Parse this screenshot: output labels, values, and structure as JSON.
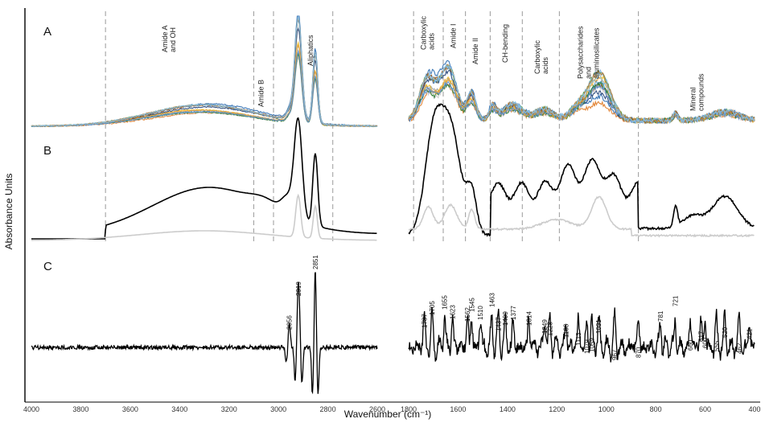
{
  "chart_data": {
    "type": "line",
    "ylabel": "Absorbance Units",
    "xlabel": "Wavenumber (cm⁻¹)",
    "xaxis_reversed": true,
    "x_ticks_left": [
      "4000",
      "3800",
      "3600",
      "3400",
      "3200",
      "3000",
      "2800",
      "2600"
    ],
    "x_ticks_right": [
      "1800",
      "1600",
      "1400",
      "1200",
      "1000",
      "800",
      "600",
      "400"
    ],
    "xlim_left": [
      4000,
      2600
    ],
    "xlim_right": [
      1800,
      400
    ],
    "panels": [
      "A",
      "B",
      "C"
    ],
    "band_boundaries": [
      3700,
      3100,
      3020,
      2780,
      1780,
      1660,
      1570,
      1470,
      1340,
      1190,
      870
    ],
    "region_labels": [
      {
        "text": "Amide A",
        "text2": "and OH"
      },
      {
        "text": "Amide B"
      },
      {
        "text": "Aliphatics"
      },
      {
        "text": "Carboxylic",
        "text2": "acids"
      },
      {
        "text": "Amide I"
      },
      {
        "text": "Amide II"
      },
      {
        "text": "CH-bending"
      },
      {
        "text": "Carboxylic",
        "text2": "acids"
      },
      {
        "text": "Polysaccharides",
        "text2": "and",
        "text3": "aluminosilicates"
      },
      {
        "text": "Mineral",
        "text2": "compounds"
      }
    ],
    "peaks_left": [
      {
        "x": 2956,
        "label": "2956"
      },
      {
        "x": 2919,
        "label": "2919"
      },
      {
        "x": 2851,
        "label": "2851"
      }
    ],
    "peaks_right": [
      {
        "x": 1737,
        "label": "1737"
      },
      {
        "x": 1705,
        "label": "1705"
      },
      {
        "x": 1655,
        "label": "1655"
      },
      {
        "x": 1623,
        "label": "1623"
      },
      {
        "x": 1562,
        "label": "1562"
      },
      {
        "x": 1545,
        "label": "1545"
      },
      {
        "x": 1510,
        "label": "1510"
      },
      {
        "x": 1463,
        "label": "1463"
      },
      {
        "x": 1437,
        "label": "1437"
      },
      {
        "x": 1409,
        "label": "1409"
      },
      {
        "x": 1377,
        "label": "1377"
      },
      {
        "x": 1314,
        "label": "1314"
      },
      {
        "x": 1249,
        "label": "1249"
      },
      {
        "x": 1228,
        "label": "1228"
      },
      {
        "x": 1163,
        "label": "1163"
      },
      {
        "x": 1113,
        "label": "1113"
      },
      {
        "x": 1079,
        "label": "1079"
      },
      {
        "x": 1059,
        "label": "1059"
      },
      {
        "x": 1031,
        "label": "1031"
      },
      {
        "x": 967,
        "label": "967"
      },
      {
        "x": 870,
        "label": "870"
      },
      {
        "x": 781,
        "label": "781"
      },
      {
        "x": 721,
        "label": "721"
      },
      {
        "x": 660,
        "label": "660"
      },
      {
        "x": 617,
        "label": "617"
      },
      {
        "x": 600,
        "label": "600"
      },
      {
        "x": 555,
        "label": "555"
      },
      {
        "x": 520,
        "label": "520"
      },
      {
        "x": 462,
        "label": "462"
      },
      {
        "x": 421,
        "label": "421"
      }
    ],
    "spectra_A_colors": [
      "#2b6cb0",
      "#e07b26",
      "#9aa0a6",
      "#f2c12e",
      "#3c8dbc",
      "#4a9a3a",
      "#1f3f75",
      "#a35a1f",
      "#7fb3e0",
      "#c8c8c8",
      "#2e7d32",
      "#e6a23c",
      "#5b8fd1",
      "#b07b3a",
      "#89c2e8"
    ],
    "series": [
      {
        "panel": "B",
        "color": "#000000"
      },
      {
        "panel": "B",
        "color": "#cccccc"
      },
      {
        "panel": "C",
        "color": "#000000"
      }
    ],
    "grid": false,
    "legend": "none"
  }
}
